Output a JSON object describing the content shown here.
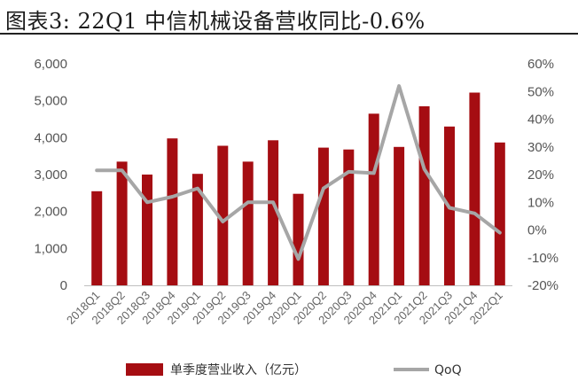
{
  "figure": {
    "title": "图表3:    22Q1 中信机械设备营收同比-0.6%"
  },
  "colors": {
    "bar": "#A50D12",
    "line": "#A6A6A6",
    "axis": "#BFBFBF"
  },
  "chart_data": {
    "type": "bar",
    "categories": [
      "2018Q1",
      "2018Q2",
      "2018Q3",
      "2018Q4",
      "2019Q1",
      "2019Q2",
      "2019Q3",
      "2019Q4",
      "2020Q1",
      "2020Q2",
      "2020Q3",
      "2020Q4",
      "2021Q1",
      "2021Q2",
      "2021Q3",
      "2021Q4",
      "2022Q1"
    ],
    "series": [
      {
        "name": "单季度营业收入（亿元）",
        "type": "bar",
        "axis": "left",
        "values": [
          2550,
          3350,
          3000,
          3980,
          3020,
          3780,
          3350,
          3930,
          2480,
          3730,
          3680,
          4650,
          3750,
          4850,
          4300,
          5220,
          3870
        ]
      },
      {
        "name": "QoQ",
        "type": "line",
        "axis": "right",
        "values": [
          0.215,
          0.215,
          0.1,
          0.12,
          0.15,
          0.03,
          0.1,
          0.1,
          -0.105,
          0.15,
          0.21,
          0.205,
          0.52,
          0.22,
          0.08,
          0.06,
          -0.01
        ]
      }
    ],
    "y_left": {
      "min": 0,
      "max": 6000,
      "ticks": [
        "0",
        "1,000",
        "2,000",
        "3,000",
        "4,000",
        "5,000",
        "6,000"
      ]
    },
    "y_right": {
      "min": -0.2,
      "max": 0.6,
      "ticks": [
        "-20%",
        "-10%",
        "0%",
        "10%",
        "20%",
        "30%",
        "40%",
        "50%",
        "60%"
      ]
    },
    "grid": false,
    "legend_position": "bottom"
  }
}
